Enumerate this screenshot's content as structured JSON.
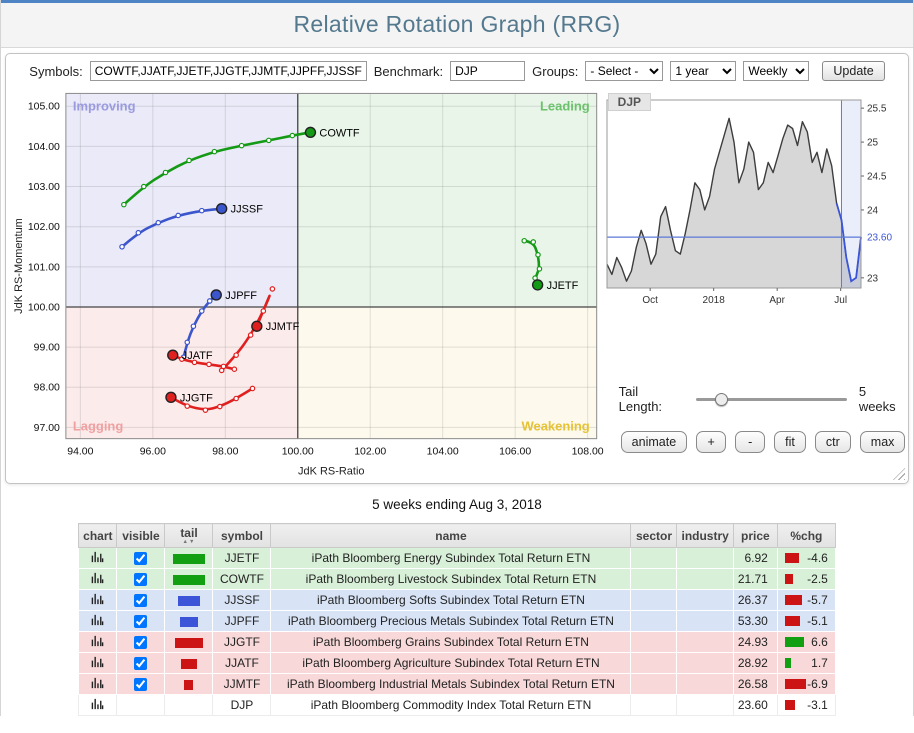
{
  "page": {
    "title": "Relative Rotation Graph (RRG)",
    "caption": "5 weeks ending Aug 3, 2018"
  },
  "toolbar": {
    "symbols_label": "Symbols:",
    "symbols_value": "COWTF,JJATF,JJETF,JJGTF,JJMTF,JJPFF,JJSSF",
    "benchmark_label": "Benchmark:",
    "benchmark_value": "DJP",
    "groups_label": "Groups:",
    "groups_selected": "- Select -",
    "period_selected": "1 year",
    "interval_selected": "Weekly",
    "update_label": "Update"
  },
  "rrg": {
    "quadrant_labels": {
      "improving": "Improving",
      "leading": "Leading",
      "lagging": "Lagging",
      "weakening": "Weakening"
    },
    "quadrant_colors": {
      "improving": "#eaeaf8",
      "leading": "#e9f5e9",
      "lagging": "#fcebeb",
      "weakening": "#fdf9ec"
    },
    "quadrant_label_colors": {
      "improving": "#9a9ae0",
      "leading": "#6cc26c",
      "lagging": "#f0a0a0",
      "weakening": "#e6c235"
    }
  },
  "price_panel": {
    "symbol_label": "DJP"
  },
  "controls": {
    "tail_label": "Tail Length:",
    "tail_value": "5 weeks",
    "tail_slider_value": "5",
    "buttons": [
      "animate",
      "+",
      "-",
      "fit",
      "ctr",
      "max"
    ]
  },
  "chart_data": [
    {
      "type": "scatter",
      "title": "Relative Rotation Graph",
      "xlabel": "JdK RS-Ratio",
      "ylabel": "JdK RS-Momentum",
      "xlim": [
        93.6,
        108.25
      ],
      "ylim": [
        96.72,
        105.32
      ],
      "x_ticks": [
        94,
        96,
        98,
        100,
        102,
        104,
        106,
        108
      ],
      "y_ticks": [
        97,
        98,
        99,
        100,
        101,
        102,
        103,
        104,
        105
      ],
      "center": [
        100,
        100
      ],
      "series": [
        {
          "name": "COWTF",
          "color": "#149a14",
          "points": [
            [
              95.2,
              102.55
            ],
            [
              95.75,
              103.0
            ],
            [
              96.35,
              103.35
            ],
            [
              97.0,
              103.65
            ],
            [
              97.7,
              103.87
            ],
            [
              98.45,
              104.02
            ],
            [
              99.2,
              104.15
            ],
            [
              99.85,
              104.27
            ],
            [
              100.35,
              104.35
            ]
          ]
        },
        {
          "name": "JJSSF",
          "color": "#3b55cc",
          "points": [
            [
              95.15,
              101.5
            ],
            [
              95.6,
              101.85
            ],
            [
              96.15,
              102.1
            ],
            [
              96.7,
              102.28
            ],
            [
              97.35,
              102.4
            ],
            [
              97.9,
              102.45
            ]
          ]
        },
        {
          "name": "JJETF",
          "color": "#149a14",
          "points": [
            [
              106.25,
              101.65
            ],
            [
              106.5,
              101.62
            ],
            [
              106.63,
              101.3
            ],
            [
              106.67,
              100.95
            ],
            [
              106.55,
              100.72
            ],
            [
              106.62,
              100.55
            ]
          ]
        },
        {
          "name": "JJPFF",
          "color": "#3b55cc",
          "points": [
            [
              96.85,
              98.75
            ],
            [
              96.95,
              99.12
            ],
            [
              97.12,
              99.52
            ],
            [
              97.35,
              99.9
            ],
            [
              97.57,
              100.15
            ],
            [
              97.75,
              100.3
            ]
          ]
        },
        {
          "name": "JJMTF",
          "color": "#e01f1f",
          "points": [
            [
              97.9,
              98.42
            ],
            [
              98.3,
              98.8
            ],
            [
              98.7,
              99.3
            ],
            [
              99.05,
              99.9
            ],
            [
              99.3,
              100.45
            ],
            [
              98.87,
              99.52
            ]
          ]
        },
        {
          "name": "JJATF",
          "color": "#e01f1f",
          "points": [
            [
              98.25,
              98.45
            ],
            [
              97.95,
              98.52
            ],
            [
              97.55,
              98.57
            ],
            [
              97.15,
              98.62
            ],
            [
              96.8,
              98.7
            ],
            [
              96.55,
              98.8
            ]
          ]
        },
        {
          "name": "JJGTF",
          "color": "#e01f1f",
          "points": [
            [
              98.75,
              97.97
            ],
            [
              98.3,
              97.72
            ],
            [
              97.85,
              97.52
            ],
            [
              97.45,
              97.43
            ],
            [
              96.95,
              97.53
            ],
            [
              96.5,
              97.75
            ]
          ]
        }
      ]
    },
    {
      "type": "line",
      "title": "DJP",
      "ylim": [
        22.85,
        25.62
      ],
      "y_ticks": [
        23,
        24,
        24.5,
        25,
        25.5
      ],
      "benchmark_value": 23.6,
      "benchmark_label": "23.60",
      "x_labels": [
        {
          "text": "Oct",
          "pos": 0.17
        },
        {
          "text": "2018",
          "pos": 0.42
        },
        {
          "text": "Apr",
          "pos": 0.67
        },
        {
          "text": "Jul",
          "pos": 0.92
        }
      ],
      "highlight_last_n": 5,
      "values": [
        23.2,
        23.05,
        23.3,
        23.15,
        22.95,
        23.1,
        23.45,
        23.7,
        23.5,
        23.2,
        23.35,
        23.9,
        24.05,
        23.7,
        23.4,
        23.35,
        23.65,
        24.0,
        24.4,
        24.3,
        24.0,
        24.2,
        24.6,
        24.85,
        25.1,
        25.35,
        25.0,
        24.4,
        24.6,
        25.0,
        24.85,
        24.3,
        24.4,
        24.7,
        24.55,
        24.8,
        25.05,
        25.25,
        25.2,
        24.95,
        25.3,
        25.15,
        24.7,
        24.85,
        24.55,
        24.9,
        24.65,
        24.1,
        23.85,
        23.3,
        22.95,
        23.0,
        23.6
      ]
    }
  ],
  "table": {
    "headers": [
      {
        "label": "chart"
      },
      {
        "label": "visible"
      },
      {
        "label": "tail",
        "sort": true
      },
      {
        "label": "symbol"
      },
      {
        "label": "name"
      },
      {
        "label": "sector"
      },
      {
        "label": "industry"
      },
      {
        "label": "price"
      },
      {
        "label": "%chg"
      }
    ],
    "colors": {
      "row_bg": {
        "green": "#d8efd8",
        "blue": "#d8e4f6",
        "red": "#f8d8d8"
      },
      "bar": {
        "green": "#12a012",
        "blue": "#3c55d8",
        "red": "#cc1414"
      },
      "pct_up": "#12a012",
      "pct_down": "#cc1414"
    },
    "rows": [
      {
        "group": "green",
        "has_checkbox": true,
        "tail_w": 32,
        "symbol": "JJETF",
        "name": "iPath Bloomberg Energy Subindex Total Return ETN",
        "sector": "",
        "industry": "",
        "price": "6.92",
        "pct": "-4.6",
        "pct_dir": "down",
        "pct_w": 14
      },
      {
        "group": "green",
        "has_checkbox": true,
        "tail_w": 32,
        "symbol": "COWTF",
        "name": "iPath Bloomberg Livestock Subindex Total Return ETN",
        "sector": "",
        "industry": "",
        "price": "21.71",
        "pct": "-2.5",
        "pct_dir": "down",
        "pct_w": 8
      },
      {
        "group": "blue",
        "has_checkbox": true,
        "tail_w": 22,
        "symbol": "JJSSF",
        "name": "iPath Bloomberg Softs Subindex Total Return ETN",
        "sector": "",
        "industry": "",
        "price": "26.37",
        "pct": "-5.7",
        "pct_dir": "down",
        "pct_w": 17
      },
      {
        "group": "blue",
        "has_checkbox": true,
        "tail_w": 18,
        "symbol": "JJPFF",
        "name": "iPath Bloomberg Precious Metals Subindex Total Return ETN",
        "sector": "",
        "industry": "",
        "price": "53.30",
        "pct": "-5.1",
        "pct_dir": "down",
        "pct_w": 15
      },
      {
        "group": "red",
        "has_checkbox": true,
        "tail_w": 28,
        "symbol": "JJGTF",
        "name": "iPath Bloomberg Grains Subindex Total Return ETN",
        "sector": "",
        "industry": "",
        "price": "24.93",
        "pct": "6.6",
        "pct_dir": "up",
        "pct_w": 19
      },
      {
        "group": "red",
        "has_checkbox": true,
        "tail_w": 16,
        "symbol": "JJATF",
        "name": "iPath Bloomberg Agriculture Subindex Total Return ETN",
        "sector": "",
        "industry": "",
        "price": "28.92",
        "pct": "1.7",
        "pct_dir": "up",
        "pct_w": 6
      },
      {
        "group": "red",
        "has_checkbox": true,
        "tail_w": 9,
        "symbol": "JJMTF",
        "name": "iPath Bloomberg Industrial Metals Subindex Total Return ETN",
        "sector": "",
        "industry": "",
        "price": "26.58",
        "pct": "-6.9",
        "pct_dir": "down",
        "pct_w": 21
      },
      {
        "group": null,
        "has_checkbox": false,
        "tail_w": 0,
        "symbol": "DJP",
        "name": "iPath Bloomberg Commodity Index Total Return ETN",
        "sector": "",
        "industry": "",
        "price": "23.60",
        "pct": "-3.1",
        "pct_dir": "down",
        "pct_w": 10
      }
    ]
  }
}
